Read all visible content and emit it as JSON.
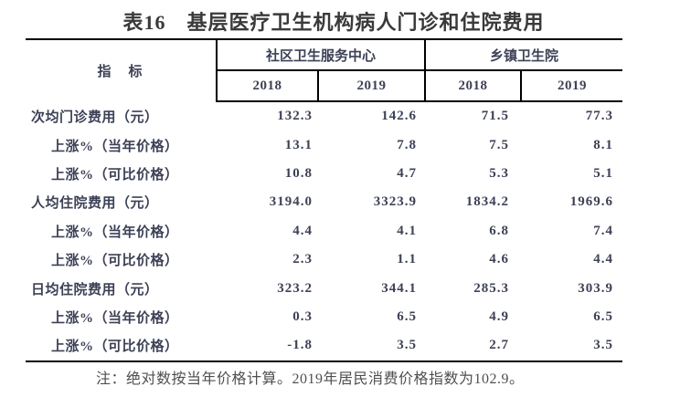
{
  "title": "表16　基层医疗卫生机构病人门诊和住院费用",
  "table": {
    "indicator_header": "指　标",
    "groups": [
      {
        "label": "社区卫生服务中心",
        "years": [
          "2018",
          "2019"
        ]
      },
      {
        "label": "乡镇卫生院",
        "years": [
          "2018",
          "2019"
        ]
      }
    ],
    "rows": [
      {
        "label": "次均门诊费用（元）",
        "indent": false,
        "values": [
          "132.3",
          "142.6",
          "71.5",
          "77.3"
        ]
      },
      {
        "label": "上涨%（当年价格）",
        "indent": true,
        "values": [
          "13.1",
          "7.8",
          "7.5",
          "8.1"
        ]
      },
      {
        "label": "上涨%（可比价格）",
        "indent": true,
        "values": [
          "10.8",
          "4.7",
          "5.3",
          "5.1"
        ]
      },
      {
        "label": "人均住院费用（元）",
        "indent": false,
        "values": [
          "3194.0",
          "3323.9",
          "1834.2",
          "1969.6"
        ]
      },
      {
        "label": "上涨%（当年价格）",
        "indent": true,
        "values": [
          "4.4",
          "4.1",
          "6.8",
          "7.4"
        ]
      },
      {
        "label": "上涨%（可比价格）",
        "indent": true,
        "values": [
          "2.3",
          "1.1",
          "4.6",
          "4.4"
        ]
      },
      {
        "label": "日均住院费用（元）",
        "indent": false,
        "values": [
          "323.2",
          "344.1",
          "285.3",
          "303.9"
        ]
      },
      {
        "label": "上涨%（当年价格）",
        "indent": true,
        "values": [
          "0.3",
          "6.5",
          "4.9",
          "6.5"
        ]
      },
      {
        "label": "上涨%（可比价格）",
        "indent": true,
        "values": [
          "-1.8",
          "3.5",
          "2.7",
          "3.5"
        ]
      }
    ]
  },
  "footnote": "注：绝对数按当年价格计算。2019年居民消费价格指数为102.9。",
  "colors": {
    "background": "#ffffff",
    "title_text": "#3a3a3a",
    "body_text": "#3d4156",
    "rule_lines": "#000000",
    "footnote_text": "#4f4f4f"
  }
}
